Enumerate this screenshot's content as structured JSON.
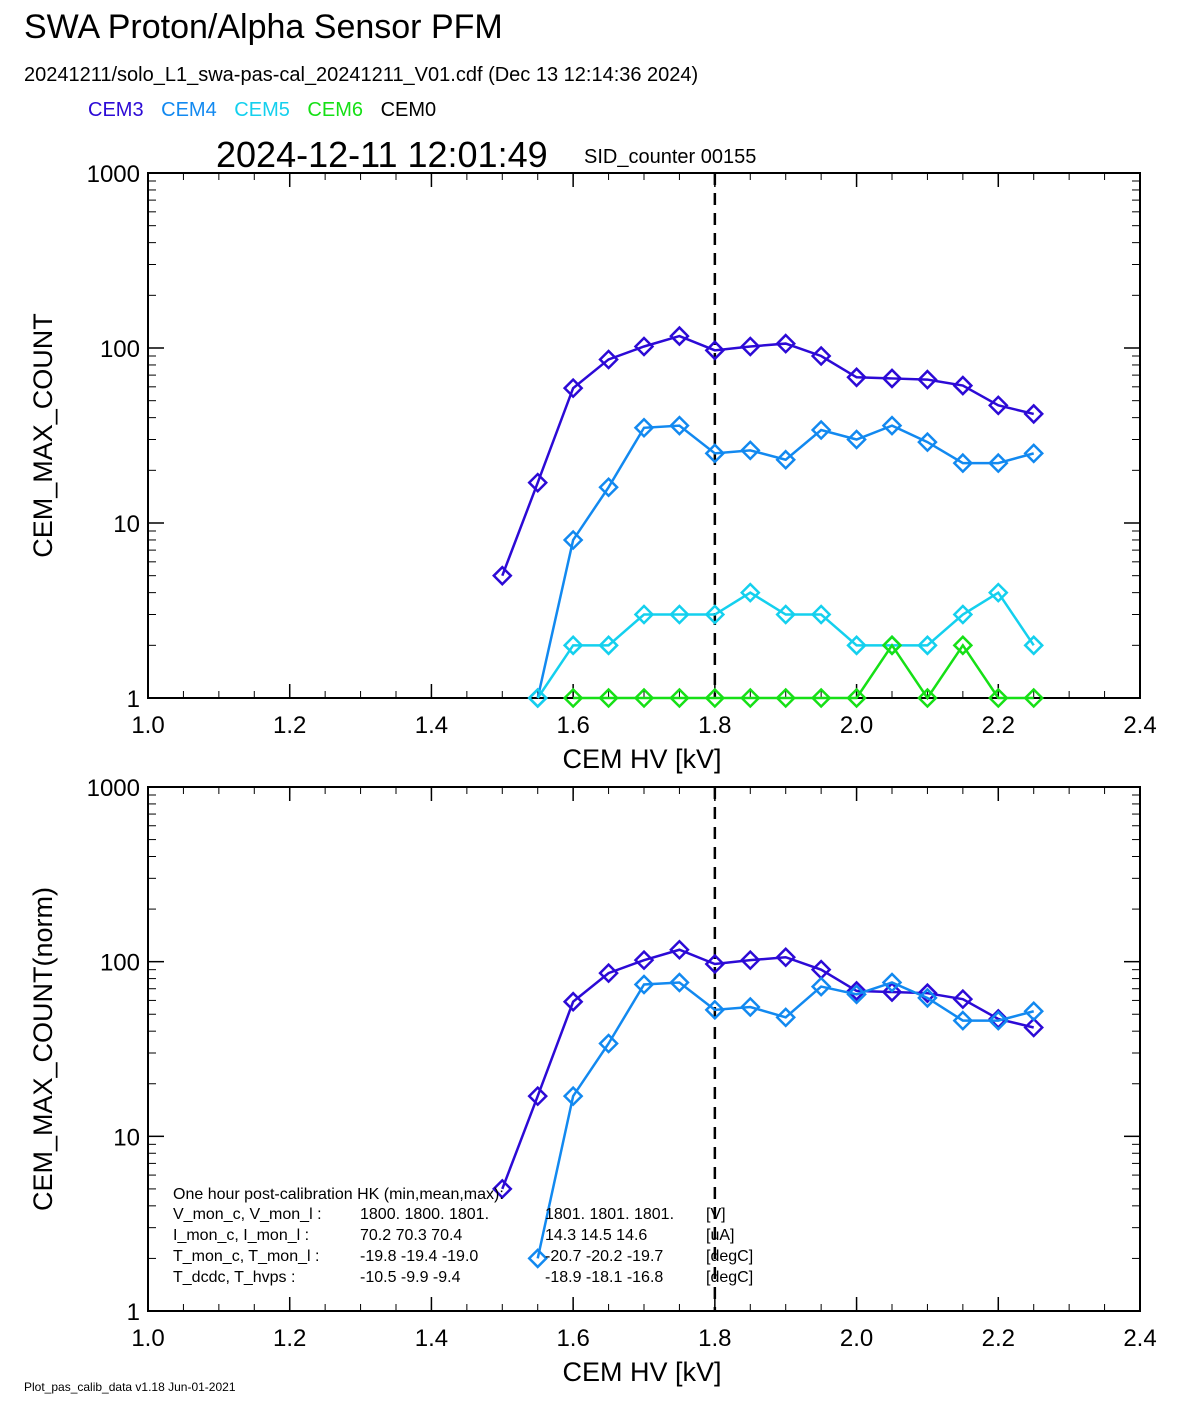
{
  "title": "SWA Proton/Alpha Sensor PFM",
  "file_line": "20241211/solo_L1_swa-pas-cal_20241211_V01.cdf  (Dec 13 12:14:36 2024)",
  "legend": [
    {
      "label": "CEM3",
      "color": "#2c0ad6"
    },
    {
      "label": "CEM4",
      "color": "#1289f0"
    },
    {
      "label": "CEM5",
      "color": "#14d0ee"
    },
    {
      "label": "CEM6",
      "color": "#16e016"
    },
    {
      "label": "CEM0",
      "color": "#000000"
    }
  ],
  "timestamp": "2024-12-11 12:01:49",
  "sid_counter": "SID_counter 00155",
  "footer": "Plot_pas_calib_data v1.18 Jun-01-2021",
  "hk": {
    "title": "One hour post-calibration HK (min,mean,max):",
    "rows": [
      {
        "label": "V_mon_c, V_mon_l :",
        "a": "1800.  1800.  1801.",
        "b": "1801.  1801.  1801.",
        "unit": "[V]"
      },
      {
        "label": "I_mon_c,  I_mon_l :",
        "a": "70.2   70.3   70.4",
        "b": "14.3   14.5   14.6",
        "unit": "[uA]"
      },
      {
        "label": "T_mon_c, T_mon_l :",
        "a": "-19.8  -19.4  -19.0",
        "b": "-20.7  -20.2  -19.7",
        "unit": "[degC]"
      },
      {
        "label": "T_dcdc,    T_hvps :",
        "a": "-10.5   -9.9   -9.4",
        "b": "-18.9  -18.1  -16.8",
        "unit": "[degC]"
      }
    ]
  },
  "chart_data": [
    {
      "type": "line",
      "xlabel": "CEM HV [kV]",
      "ylabel": "CEM_MAX_COUNT",
      "xlim": [
        1.0,
        2.4
      ],
      "ylim": [
        1,
        1000
      ],
      "yscale": "log",
      "x_ticks": [
        "1.0",
        "1.2",
        "1.4",
        "1.6",
        "1.8",
        "2.0",
        "2.2",
        "2.4"
      ],
      "y_ticks": [
        "1",
        "10",
        "100",
        "1000"
      ],
      "vline_x": 1.8,
      "series": [
        {
          "name": "CEM3",
          "color": "#2c0ad6",
          "x": [
            1.5,
            1.55,
            1.6,
            1.65,
            1.7,
            1.75,
            1.8,
            1.85,
            1.9,
            1.95,
            2.0,
            2.05,
            2.1,
            2.15,
            2.2,
            2.25
          ],
          "y": [
            5,
            17,
            59,
            86,
            102,
            117,
            97,
            102,
            106,
            90,
            68,
            67,
            66,
            61,
            47,
            42
          ]
        },
        {
          "name": "CEM4",
          "color": "#1289f0",
          "x": [
            1.55,
            1.6,
            1.65,
            1.7,
            1.75,
            1.8,
            1.85,
            1.9,
            1.95,
            2.0,
            2.05,
            2.1,
            2.15,
            2.2,
            2.25
          ],
          "y": [
            1,
            8,
            16,
            35,
            36,
            25,
            26,
            23,
            34,
            30,
            36,
            29,
            22,
            22,
            25
          ]
        },
        {
          "name": "CEM5",
          "color": "#14d0ee",
          "x": [
            1.55,
            1.6,
            1.65,
            1.7,
            1.75,
            1.8,
            1.85,
            1.9,
            1.95,
            2.0,
            2.05,
            2.1,
            2.15,
            2.2,
            2.25
          ],
          "y": [
            1,
            2,
            2,
            3,
            3,
            3,
            4,
            3,
            3,
            2,
            2,
            2,
            3,
            4,
            2
          ]
        },
        {
          "name": "CEM6",
          "color": "#16e016",
          "x": [
            1.6,
            1.65,
            1.7,
            1.75,
            1.8,
            1.85,
            1.9,
            1.95,
            2.0,
            2.05,
            2.1,
            2.15,
            2.2,
            2.25
          ],
          "y": [
            1,
            1,
            1,
            1,
            1,
            1,
            1,
            1,
            1,
            2,
            1,
            2,
            1,
            1
          ]
        }
      ]
    },
    {
      "type": "line",
      "xlabel": "CEM HV [kV]",
      "ylabel": "CEM_MAX_COUNT(norm)",
      "xlim": [
        1.0,
        2.4
      ],
      "ylim": [
        1,
        1000
      ],
      "yscale": "log",
      "x_ticks": [
        "1.0",
        "1.2",
        "1.4",
        "1.6",
        "1.8",
        "2.0",
        "2.2",
        "2.4"
      ],
      "y_ticks": [
        "1",
        "10",
        "100",
        "1000"
      ],
      "vline_x": 1.8,
      "series": [
        {
          "name": "CEM3",
          "color": "#2c0ad6",
          "x": [
            1.5,
            1.55,
            1.6,
            1.65,
            1.7,
            1.75,
            1.8,
            1.85,
            1.9,
            1.95,
            2.0,
            2.05,
            2.1,
            2.15,
            2.2,
            2.25
          ],
          "y": [
            5,
            17,
            59,
            86,
            102,
            117,
            97,
            102,
            106,
            90,
            68,
            67,
            66,
            61,
            47,
            42
          ]
        },
        {
          "name": "CEM4",
          "color": "#1289f0",
          "x": [
            1.55,
            1.6,
            1.65,
            1.7,
            1.75,
            1.8,
            1.85,
            1.9,
            1.95,
            2.0,
            2.05,
            2.1,
            2.15,
            2.2,
            2.25
          ],
          "y": [
            2,
            17,
            34,
            74,
            76,
            53,
            55,
            48,
            72,
            65,
            76,
            62,
            46,
            46,
            52
          ]
        }
      ]
    }
  ]
}
